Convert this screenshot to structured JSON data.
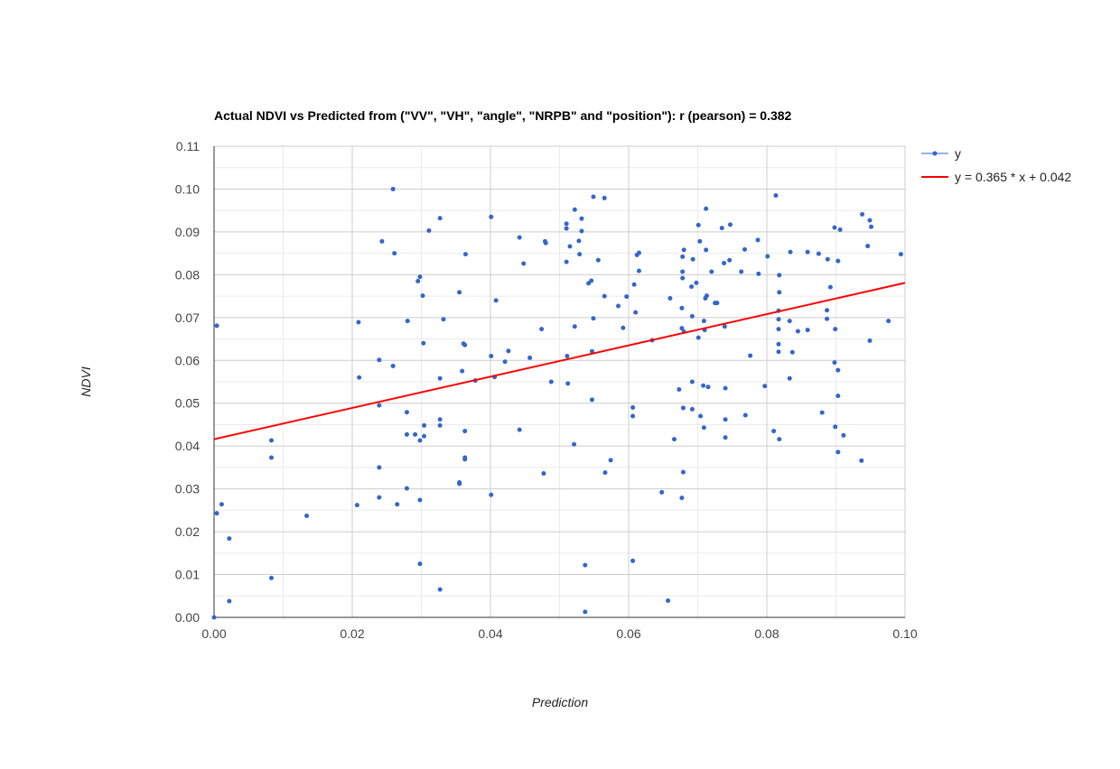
{
  "chart_data": {
    "type": "scatter",
    "title": "Actual NDVI vs Predicted from (\"VV\", \"VH\", \"angle\", \"NRPB\" and \"position\"): r (pearson) = 0.382",
    "xlabel": "Prediction",
    "ylabel": "NDVI",
    "xlim": [
      0,
      0.1
    ],
    "ylim": [
      0,
      0.11
    ],
    "x_ticks": [
      "0.00",
      "0.02",
      "0.04",
      "0.06",
      "0.08",
      "0.10"
    ],
    "y_ticks": [
      "0.00",
      "0.01",
      "0.02",
      "0.03",
      "0.04",
      "0.05",
      "0.06",
      "0.07",
      "0.08",
      "0.09",
      "0.10",
      "0.11"
    ],
    "grid": true,
    "legend_position": "right",
    "colors": {
      "points": "#3366cc",
      "trendline": "#ff0000",
      "grid_major": "#cccccc",
      "grid_minor": "#ebebeb",
      "axis": "#333333"
    },
    "series": [
      {
        "name": "y",
        "points": [
          [
            0.0,
            0.0
          ],
          [
            0.0004,
            0.0681
          ],
          [
            0.0004,
            0.0243
          ],
          [
            0.0011,
            0.0264
          ],
          [
            0.0022,
            0.0184
          ],
          [
            0.0022,
            0.0038
          ],
          [
            0.0083,
            0.0413
          ],
          [
            0.0083,
            0.0373
          ],
          [
            0.0083,
            0.0092
          ],
          [
            0.0134,
            0.0237
          ],
          [
            0.0207,
            0.0262
          ],
          [
            0.0209,
            0.0689
          ],
          [
            0.021,
            0.056
          ],
          [
            0.0239,
            0.0601
          ],
          [
            0.0239,
            0.0495
          ],
          [
            0.0239,
            0.035
          ],
          [
            0.0239,
            0.028
          ],
          [
            0.0243,
            0.0878
          ],
          [
            0.0259,
            0.0587
          ],
          [
            0.0259,
            0.1
          ],
          [
            0.0261,
            0.085
          ],
          [
            0.0265,
            0.0264
          ],
          [
            0.0279,
            0.0479
          ],
          [
            0.0279,
            0.0427
          ],
          [
            0.0279,
            0.0301
          ],
          [
            0.028,
            0.0692
          ],
          [
            0.0291,
            0.0427
          ],
          [
            0.0295,
            0.0785
          ],
          [
            0.0298,
            0.0795
          ],
          [
            0.0298,
            0.0413
          ],
          [
            0.0298,
            0.0274
          ],
          [
            0.0298,
            0.0125
          ],
          [
            0.0302,
            0.0751
          ],
          [
            0.0303,
            0.064
          ],
          [
            0.0304,
            0.0448
          ],
          [
            0.0304,
            0.0423
          ],
          [
            0.0311,
            0.0903
          ],
          [
            0.0327,
            0.0932
          ],
          [
            0.0327,
            0.0558
          ],
          [
            0.0327,
            0.0462
          ],
          [
            0.0327,
            0.0448
          ],
          [
            0.0327,
            0.0065
          ],
          [
            0.0332,
            0.0696
          ],
          [
            0.0355,
            0.0759
          ],
          [
            0.0355,
            0.0315
          ],
          [
            0.0355,
            0.0312
          ],
          [
            0.0359,
            0.0575
          ],
          [
            0.0361,
            0.0639
          ],
          [
            0.0363,
            0.0636
          ],
          [
            0.0363,
            0.0435
          ],
          [
            0.0363,
            0.0373
          ],
          [
            0.0363,
            0.0369
          ],
          [
            0.0364,
            0.0848
          ],
          [
            0.0378,
            0.0553
          ],
          [
            0.0401,
            0.0935
          ],
          [
            0.0401,
            0.061
          ],
          [
            0.0401,
            0.0286
          ],
          [
            0.0406,
            0.0561
          ],
          [
            0.0408,
            0.074
          ],
          [
            0.0421,
            0.0597
          ],
          [
            0.0426,
            0.0622
          ],
          [
            0.0442,
            0.0887
          ],
          [
            0.0442,
            0.0438
          ],
          [
            0.0448,
            0.0826
          ],
          [
            0.0457,
            0.0606
          ],
          [
            0.0474,
            0.0673
          ],
          [
            0.0477,
            0.0336
          ],
          [
            0.0479,
            0.0878
          ],
          [
            0.048,
            0.0874
          ],
          [
            0.0488,
            0.055
          ],
          [
            0.051,
            0.0919
          ],
          [
            0.051,
            0.0908
          ],
          [
            0.051,
            0.083
          ],
          [
            0.0511,
            0.061
          ],
          [
            0.0512,
            0.0546
          ],
          [
            0.0515,
            0.0866
          ],
          [
            0.0521,
            0.0404
          ],
          [
            0.0522,
            0.0952
          ],
          [
            0.0522,
            0.0679
          ],
          [
            0.0528,
            0.0879
          ],
          [
            0.0529,
            0.0848
          ],
          [
            0.0532,
            0.0931
          ],
          [
            0.0532,
            0.0902
          ],
          [
            0.0537,
            0.0013
          ],
          [
            0.0537,
            0.0122
          ],
          [
            0.0542,
            0.078
          ],
          [
            0.0546,
            0.0786
          ],
          [
            0.0547,
            0.0621
          ],
          [
            0.0547,
            0.0508
          ],
          [
            0.0549,
            0.0982
          ],
          [
            0.0549,
            0.0698
          ],
          [
            0.0556,
            0.0834
          ],
          [
            0.0565,
            0.0979
          ],
          [
            0.0565,
            0.075
          ],
          [
            0.0566,
            0.0338
          ],
          [
            0.0574,
            0.0367
          ],
          [
            0.0585,
            0.0727
          ],
          [
            0.0592,
            0.0676
          ],
          [
            0.0597,
            0.0749
          ],
          [
            0.0606,
            0.049
          ],
          [
            0.0606,
            0.047
          ],
          [
            0.0606,
            0.0132
          ],
          [
            0.0608,
            0.0777
          ],
          [
            0.061,
            0.0712
          ],
          [
            0.0612,
            0.0846
          ],
          [
            0.0615,
            0.0851
          ],
          [
            0.0615,
            0.0809
          ],
          [
            0.0634,
            0.0647
          ],
          [
            0.0648,
            0.0292
          ],
          [
            0.0657,
            0.0039
          ],
          [
            0.066,
            0.0745
          ],
          [
            0.0666,
            0.0416
          ],
          [
            0.0673,
            0.0532
          ],
          [
            0.0677,
            0.0279
          ],
          [
            0.0677,
            0.0722
          ],
          [
            0.0677,
            0.0675
          ],
          [
            0.0678,
            0.0842
          ],
          [
            0.0678,
            0.0807
          ],
          [
            0.0678,
            0.0792
          ],
          [
            0.0679,
            0.0489
          ],
          [
            0.0679,
            0.0339
          ],
          [
            0.068,
            0.0667
          ],
          [
            0.068,
            0.0858
          ],
          [
            0.0691,
            0.0772
          ],
          [
            0.0692,
            0.055
          ],
          [
            0.0692,
            0.0486
          ],
          [
            0.0692,
            0.0703
          ],
          [
            0.0693,
            0.0836
          ],
          [
            0.0698,
            0.0781
          ],
          [
            0.0701,
            0.0916
          ],
          [
            0.0701,
            0.0653
          ],
          [
            0.0703,
            0.0878
          ],
          [
            0.0704,
            0.047
          ],
          [
            0.0708,
            0.0541
          ],
          [
            0.0709,
            0.0443
          ],
          [
            0.0709,
            0.0692
          ],
          [
            0.071,
            0.0671
          ],
          [
            0.0711,
            0.0745
          ],
          [
            0.0712,
            0.0858
          ],
          [
            0.0712,
            0.0954
          ],
          [
            0.0713,
            0.0751
          ],
          [
            0.0715,
            0.0538
          ],
          [
            0.072,
            0.0807
          ],
          [
            0.0725,
            0.0734
          ],
          [
            0.0728,
            0.0734
          ],
          [
            0.0735,
            0.0909
          ],
          [
            0.0738,
            0.0827
          ],
          [
            0.0739,
            0.0679
          ],
          [
            0.074,
            0.0462
          ],
          [
            0.074,
            0.042
          ],
          [
            0.074,
            0.0535
          ],
          [
            0.0746,
            0.0834
          ],
          [
            0.0747,
            0.0917
          ],
          [
            0.0763,
            0.0807
          ],
          [
            0.0768,
            0.0859
          ],
          [
            0.0769,
            0.0472
          ],
          [
            0.0776,
            0.0611
          ],
          [
            0.0787,
            0.0881
          ],
          [
            0.0788,
            0.0802
          ],
          [
            0.0797,
            0.054
          ],
          [
            0.0801,
            0.0843
          ],
          [
            0.081,
            0.0435
          ],
          [
            0.0813,
            0.0985
          ],
          [
            0.0817,
            0.0638
          ],
          [
            0.0817,
            0.062
          ],
          [
            0.0817,
            0.0673
          ],
          [
            0.0817,
            0.0696
          ],
          [
            0.0817,
            0.0716
          ],
          [
            0.0818,
            0.0799
          ],
          [
            0.0818,
            0.0759
          ],
          [
            0.0818,
            0.0416
          ],
          [
            0.0833,
            0.0558
          ],
          [
            0.0833,
            0.0692
          ],
          [
            0.0834,
            0.0853
          ],
          [
            0.0837,
            0.0619
          ],
          [
            0.0845,
            0.0668
          ],
          [
            0.0859,
            0.0853
          ],
          [
            0.0859,
            0.0671
          ],
          [
            0.0875,
            0.0849
          ],
          [
            0.088,
            0.0478
          ],
          [
            0.0887,
            0.0717
          ],
          [
            0.0887,
            0.0697
          ],
          [
            0.0888,
            0.0836
          ],
          [
            0.0892,
            0.0771
          ],
          [
            0.0898,
            0.091
          ],
          [
            0.0898,
            0.0595
          ],
          [
            0.0899,
            0.0673
          ],
          [
            0.0899,
            0.0445
          ],
          [
            0.0903,
            0.0386
          ],
          [
            0.0903,
            0.0577
          ],
          [
            0.0903,
            0.0517
          ],
          [
            0.0903,
            0.0832
          ],
          [
            0.0906,
            0.0905
          ],
          [
            0.0911,
            0.0425
          ],
          [
            0.0937,
            0.0366
          ],
          [
            0.0938,
            0.0941
          ],
          [
            0.0946,
            0.0867
          ],
          [
            0.0949,
            0.0646
          ],
          [
            0.0949,
            0.0927
          ],
          [
            0.0951,
            0.0912
          ],
          [
            0.0976,
            0.0692
          ],
          [
            0.0994,
            0.0848
          ]
        ]
      },
      {
        "name": "y = 0.365 * x + 0.042",
        "type": "line",
        "slope": 0.365,
        "intercept": 0.0416,
        "x_range": [
          0,
          0.1
        ]
      }
    ]
  }
}
